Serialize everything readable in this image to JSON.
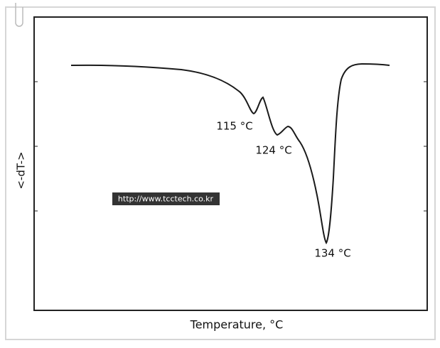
{
  "plot": {
    "x_label": "Temperature, °C",
    "y_label": "<-dT->",
    "annotations": [
      "115 °C",
      "124 °C",
      "134 °C"
    ]
  },
  "watermark": "http://www.tcctech.co.kr"
}
